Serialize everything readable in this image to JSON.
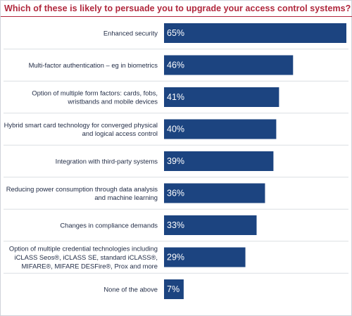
{
  "chart_data": {
    "type": "bar",
    "orientation": "horizontal",
    "title": "Which of these is likely to persuade you to upgrade your access control systems?",
    "categories": [
      "Enhanced security",
      "Multi-factor authentication – eg in biometrics",
      "Option of multiple form factors: cards, fobs,\nwristbands and mobile devices",
      "Hybrid smart card technology for converged physical\nand logical access control",
      "Integration with third-party systems",
      "Reducing power consumption through data analysis\nand machine learning",
      "Changes in compliance demands",
      "Option of multiple credential technologies including\niCLASS Seos®, iCLASS SE, standard iCLASS®,\nMIFARE®, MIFARE DESFire®, Prox and more",
      "None of the above"
    ],
    "values": [
      65,
      46,
      41,
      40,
      39,
      36,
      33,
      29,
      7
    ],
    "value_labels": [
      "65%",
      "46%",
      "41%",
      "40%",
      "39%",
      "36%",
      "33%",
      "29%",
      "7%"
    ],
    "unit": "%",
    "xlim": [
      0,
      65
    ],
    "grid": false,
    "legend": "none",
    "bar_color": "#1c4480",
    "title_color": "#b0273c",
    "separator_color": "#dcdfe4"
  }
}
